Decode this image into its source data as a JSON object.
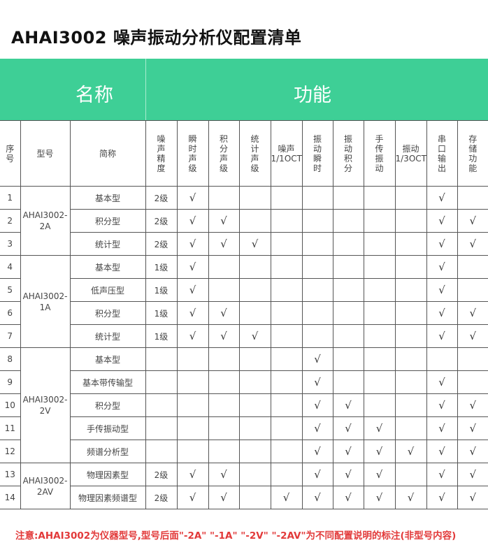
{
  "title": "AHAI3002 噪声振动分析仪配置清单",
  "band": {
    "name_label": "名称",
    "function_label": "功能",
    "color": "#3ecf96"
  },
  "headers": {
    "index": "序号",
    "model": "型号",
    "short_name": "简称",
    "functions": [
      "噪声精度",
      "瞬时声级",
      "积分声级",
      "统计声级",
      "噪声1/1OCT",
      "振动瞬时",
      "振动积分",
      "手传振动",
      "振动1/3OCT",
      "串口输出",
      "存储功能"
    ]
  },
  "check_mark": "√",
  "models": [
    {
      "name": "AHAI3002-2A",
      "rows": 3
    },
    {
      "name": "AHAI3002-1A",
      "rows": 4
    },
    {
      "name": "AHAI3002-2V",
      "rows": 5
    },
    {
      "name": "AHAI3002-2AV",
      "rows": 2
    }
  ],
  "rows": [
    {
      "no": "1",
      "name": "基本型",
      "grade": "2级",
      "f": [
        1,
        0,
        0,
        0,
        0,
        0,
        0,
        0,
        1,
        0
      ]
    },
    {
      "no": "2",
      "name": "积分型",
      "grade": "2级",
      "f": [
        1,
        1,
        0,
        0,
        0,
        0,
        0,
        0,
        1,
        1
      ]
    },
    {
      "no": "3",
      "name": "统计型",
      "grade": "2级",
      "f": [
        1,
        1,
        1,
        0,
        0,
        0,
        0,
        0,
        1,
        1
      ]
    },
    {
      "no": "4",
      "name": "基本型",
      "grade": "1级",
      "f": [
        1,
        0,
        0,
        0,
        0,
        0,
        0,
        0,
        1,
        0
      ]
    },
    {
      "no": "5",
      "name": "低声压型",
      "grade": "1级",
      "f": [
        1,
        0,
        0,
        0,
        0,
        0,
        0,
        0,
        1,
        0
      ]
    },
    {
      "no": "6",
      "name": "积分型",
      "grade": "1级",
      "f": [
        1,
        1,
        0,
        0,
        0,
        0,
        0,
        0,
        1,
        1
      ]
    },
    {
      "no": "7",
      "name": "统计型",
      "grade": "1级",
      "f": [
        1,
        1,
        1,
        0,
        0,
        0,
        0,
        0,
        1,
        1
      ]
    },
    {
      "no": "8",
      "name": "基本型",
      "grade": "",
      "f": [
        0,
        0,
        0,
        0,
        1,
        0,
        0,
        0,
        0,
        0
      ]
    },
    {
      "no": "9",
      "name": "基本带传输型",
      "grade": "",
      "f": [
        0,
        0,
        0,
        0,
        1,
        0,
        0,
        0,
        1,
        0
      ]
    },
    {
      "no": "10",
      "name": "积分型",
      "grade": "",
      "f": [
        0,
        0,
        0,
        0,
        1,
        1,
        0,
        0,
        1,
        1
      ]
    },
    {
      "no": "11",
      "name": "手传振动型",
      "grade": "",
      "f": [
        0,
        0,
        0,
        0,
        1,
        1,
        1,
        0,
        1,
        1
      ]
    },
    {
      "no": "12",
      "name": "频谱分析型",
      "grade": "",
      "f": [
        0,
        0,
        0,
        0,
        1,
        1,
        1,
        1,
        1,
        1
      ]
    },
    {
      "no": "13",
      "name": "物理因素型",
      "grade": "2级",
      "f": [
        1,
        1,
        0,
        0,
        1,
        1,
        1,
        0,
        1,
        1
      ]
    },
    {
      "no": "14",
      "name": "物理因素频谱型",
      "grade": "2级",
      "f": [
        1,
        1,
        0,
        1,
        1,
        1,
        1,
        1,
        1,
        1
      ]
    }
  ],
  "note": "注意:AHAI3002为仪器型号,型号后面\"-2A\" \"-1A\" \"-2V\" \"-2AV\"为不同配置说明的标注(非型号内容)",
  "note_color": "#e23a3a"
}
